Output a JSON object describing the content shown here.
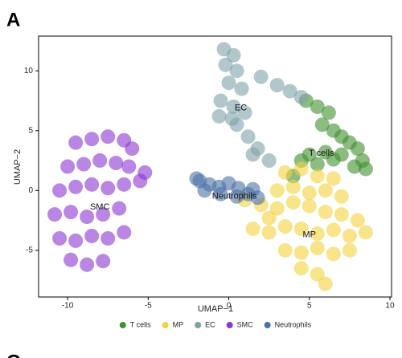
{
  "chart_data": {
    "type": "scatter",
    "panel_labels": [
      "A",
      "C"
    ],
    "xlabel": "UMAP−1",
    "ylabel": "UMAP−2",
    "xlim": [
      -11.8,
      10.1
    ],
    "ylim": [
      -8.9,
      12.9
    ],
    "xticks": [
      -10,
      -5,
      0,
      5,
      10
    ],
    "yticks": [
      -5,
      0,
      5,
      10
    ],
    "grid": false,
    "legend": "bottom",
    "series": [
      {
        "name": "T cells",
        "color": "#3f8f2e",
        "x": [
          4.8,
          5.5,
          6.2,
          5.8,
          6.5,
          7.0,
          7.5,
          8.0,
          8.3,
          8.5,
          7.8,
          7.0,
          6.0,
          5.0,
          4.5,
          5.5,
          6.5,
          4.0
        ],
        "y": [
          7.5,
          7.0,
          6.5,
          5.5,
          5.0,
          4.5,
          4.0,
          3.5,
          2.5,
          1.8,
          2.0,
          3.0,
          3.2,
          3.0,
          2.5,
          2.2,
          2.6,
          1.2
        ]
      },
      {
        "name": "MP",
        "color": "#f3d23e",
        "x": [
          3.5,
          4.5,
          5.5,
          6.5,
          3.0,
          4.0,
          5.0,
          6.0,
          7.0,
          2.0,
          3.0,
          4.0,
          5.0,
          6.0,
          7.0,
          8.0,
          1.5,
          2.5,
          3.5,
          4.5,
          5.5,
          6.5,
          7.5,
          8.5,
          3.5,
          4.5,
          5.5,
          6.5,
          7.5,
          4.5,
          5.5,
          6.0,
          2.5,
          1.0
        ],
        "y": [
          1.5,
          1.8,
          1.2,
          1.0,
          0,
          0.3,
          -0.2,
          0,
          -0.5,
          -1.2,
          -1.5,
          -1.0,
          -1.3,
          -1.8,
          -2.0,
          -2.5,
          -3.2,
          -3.5,
          -3.0,
          -3.2,
          -3.6,
          -3.3,
          -3.8,
          -3.5,
          -5.0,
          -5.2,
          -4.8,
          -5.3,
          -5.0,
          -6.5,
          -7.0,
          -7.8,
          -2.3,
          -0.8
        ]
      },
      {
        "name": "EC",
        "color": "#7ea2a8",
        "x": [
          -0.3,
          0.3,
          -0.2,
          0.5,
          0.0,
          0.8,
          -0.5,
          0.3,
          1.0,
          0.5,
          1.2,
          1.8,
          2.5,
          1.5,
          2.0,
          3.0,
          3.8,
          4.5,
          0.2,
          -0.6
        ],
        "y": [
          11.8,
          11.3,
          10.5,
          10,
          9,
          8.5,
          7.5,
          7,
          6.5,
          5.5,
          4.5,
          3.5,
          2.5,
          3,
          9.5,
          8.8,
          8.3,
          7.8,
          6,
          6.2
        ]
      },
      {
        "name": "SMC",
        "color": "#8a36d2",
        "x": [
          -9.5,
          -8.5,
          -7.5,
          -6.5,
          -6.0,
          -10.0,
          -9.0,
          -8.0,
          -7.0,
          -6.2,
          -10.5,
          -9.5,
          -8.5,
          -7.5,
          -6.5,
          -10.8,
          -9.8,
          -8.8,
          -7.8,
          -6.8,
          -10.5,
          -9.5,
          -8.5,
          -7.5,
          -6.5,
          -9.8,
          -8.8,
          -7.8,
          -5.5,
          -5.2
        ],
        "y": [
          4,
          4.3,
          4.5,
          4.2,
          3.5,
          2,
          2.2,
          2.5,
          2.3,
          2,
          0,
          0.3,
          0.5,
          0.2,
          0.5,
          -2,
          -1.8,
          -2.2,
          -2,
          -1.5,
          -4,
          -4.2,
          -3.8,
          -4,
          -3.5,
          -5.8,
          -6.2,
          -5.9,
          0.8,
          1.5
        ]
      },
      {
        "name": "Neutrophils",
        "color": "#4b72a8",
        "x": [
          -1.8,
          -1.2,
          -0.6,
          0,
          0.6,
          1.2,
          1.8,
          -1.5,
          -0.5,
          0.5,
          1.5,
          -2.0
        ],
        "y": [
          0.8,
          0.5,
          0.3,
          0.6,
          0.2,
          -0.3,
          -0.6,
          0,
          -0.3,
          -0.5,
          0.1,
          1.0
        ]
      }
    ],
    "annotations": [
      {
        "text": "EC",
        "x": 0.75,
        "y": 6.9
      },
      {
        "text": "T cells",
        "x": 5.75,
        "y": 3.1
      },
      {
        "text": "Neutrophils",
        "x": 0.35,
        "y": -0.5
      },
      {
        "text": "SMC",
        "x": -8.0,
        "y": -1.4
      },
      {
        "text": "MP",
        "x": 5.0,
        "y": -3.7
      }
    ]
  }
}
